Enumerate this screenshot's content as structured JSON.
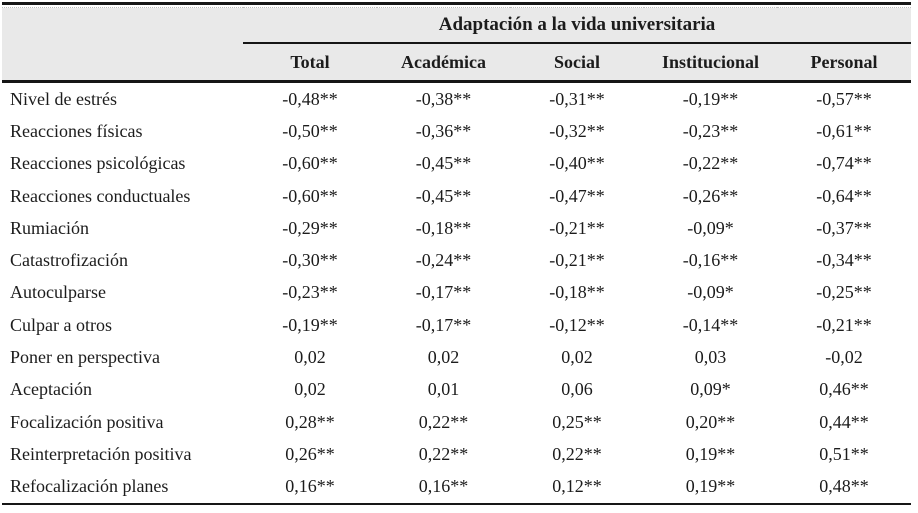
{
  "table": {
    "spanner_title": "Adaptación a la vida universitaria",
    "columns": [
      "Total",
      "Académica",
      "Social",
      "Institucional",
      "Personal"
    ],
    "rows": [
      {
        "label": "Nivel de estrés",
        "values": [
          "-0,48**",
          "-0,38**",
          "-0,31**",
          "-0,19**",
          "-0,57**"
        ]
      },
      {
        "label": "Reacciones físicas",
        "values": [
          "-0,50**",
          "-0,36**",
          "-0,32**",
          "-0,23**",
          "-0,61**"
        ]
      },
      {
        "label": "Reacciones psicológicas",
        "values": [
          "-0,60**",
          "-0,45**",
          "-0,40**",
          "-0,22**",
          "-0,74**"
        ]
      },
      {
        "label": "Reacciones conductuales",
        "values": [
          "-0,60**",
          "-0,45**",
          "-0,47**",
          "-0,26**",
          "-0,64**"
        ]
      },
      {
        "label": "Rumiación",
        "values": [
          "-0,29**",
          "-0,18**",
          "-0,21**",
          "-0,09*",
          "-0,37**"
        ]
      },
      {
        "label": "Catastrofización",
        "values": [
          "-0,30**",
          "-0,24**",
          "-0,21**",
          "-0,16**",
          "-0,34**"
        ]
      },
      {
        "label": "Autoculparse",
        "values": [
          "-0,23**",
          "-0,17**",
          "-0,18**",
          "-0,09*",
          "-0,25**"
        ]
      },
      {
        "label": "Culpar a otros",
        "values": [
          "-0,19**",
          "-0,17**",
          "-0,12**",
          "-0,14**",
          "-0,21**"
        ]
      },
      {
        "label": "Poner en perspectiva",
        "values": [
          "0,02",
          "0,02",
          "0,02",
          "0,03",
          "-0,02"
        ]
      },
      {
        "label": "Aceptación",
        "values": [
          "0,02",
          "0,01",
          "0,06",
          "0,09*",
          "0,46**"
        ]
      },
      {
        "label": "Focalización positiva",
        "values": [
          "0,28**",
          "0,22**",
          "0,25**",
          "0,20**",
          "0,44**"
        ]
      },
      {
        "label": "Reinterpretación positiva",
        "values": [
          "0,26**",
          "0,22**",
          "0,22**",
          "0,19**",
          "0,51**"
        ]
      },
      {
        "label": "Refocalización planes",
        "values": [
          "0,16**",
          "0,16**",
          "0,12**",
          "0,19**",
          "0,48**"
        ]
      }
    ]
  },
  "colors": {
    "header_bg": "#e9e9e9",
    "rule": "#161616",
    "text": "#1c1c1c",
    "background": "#ffffff"
  }
}
